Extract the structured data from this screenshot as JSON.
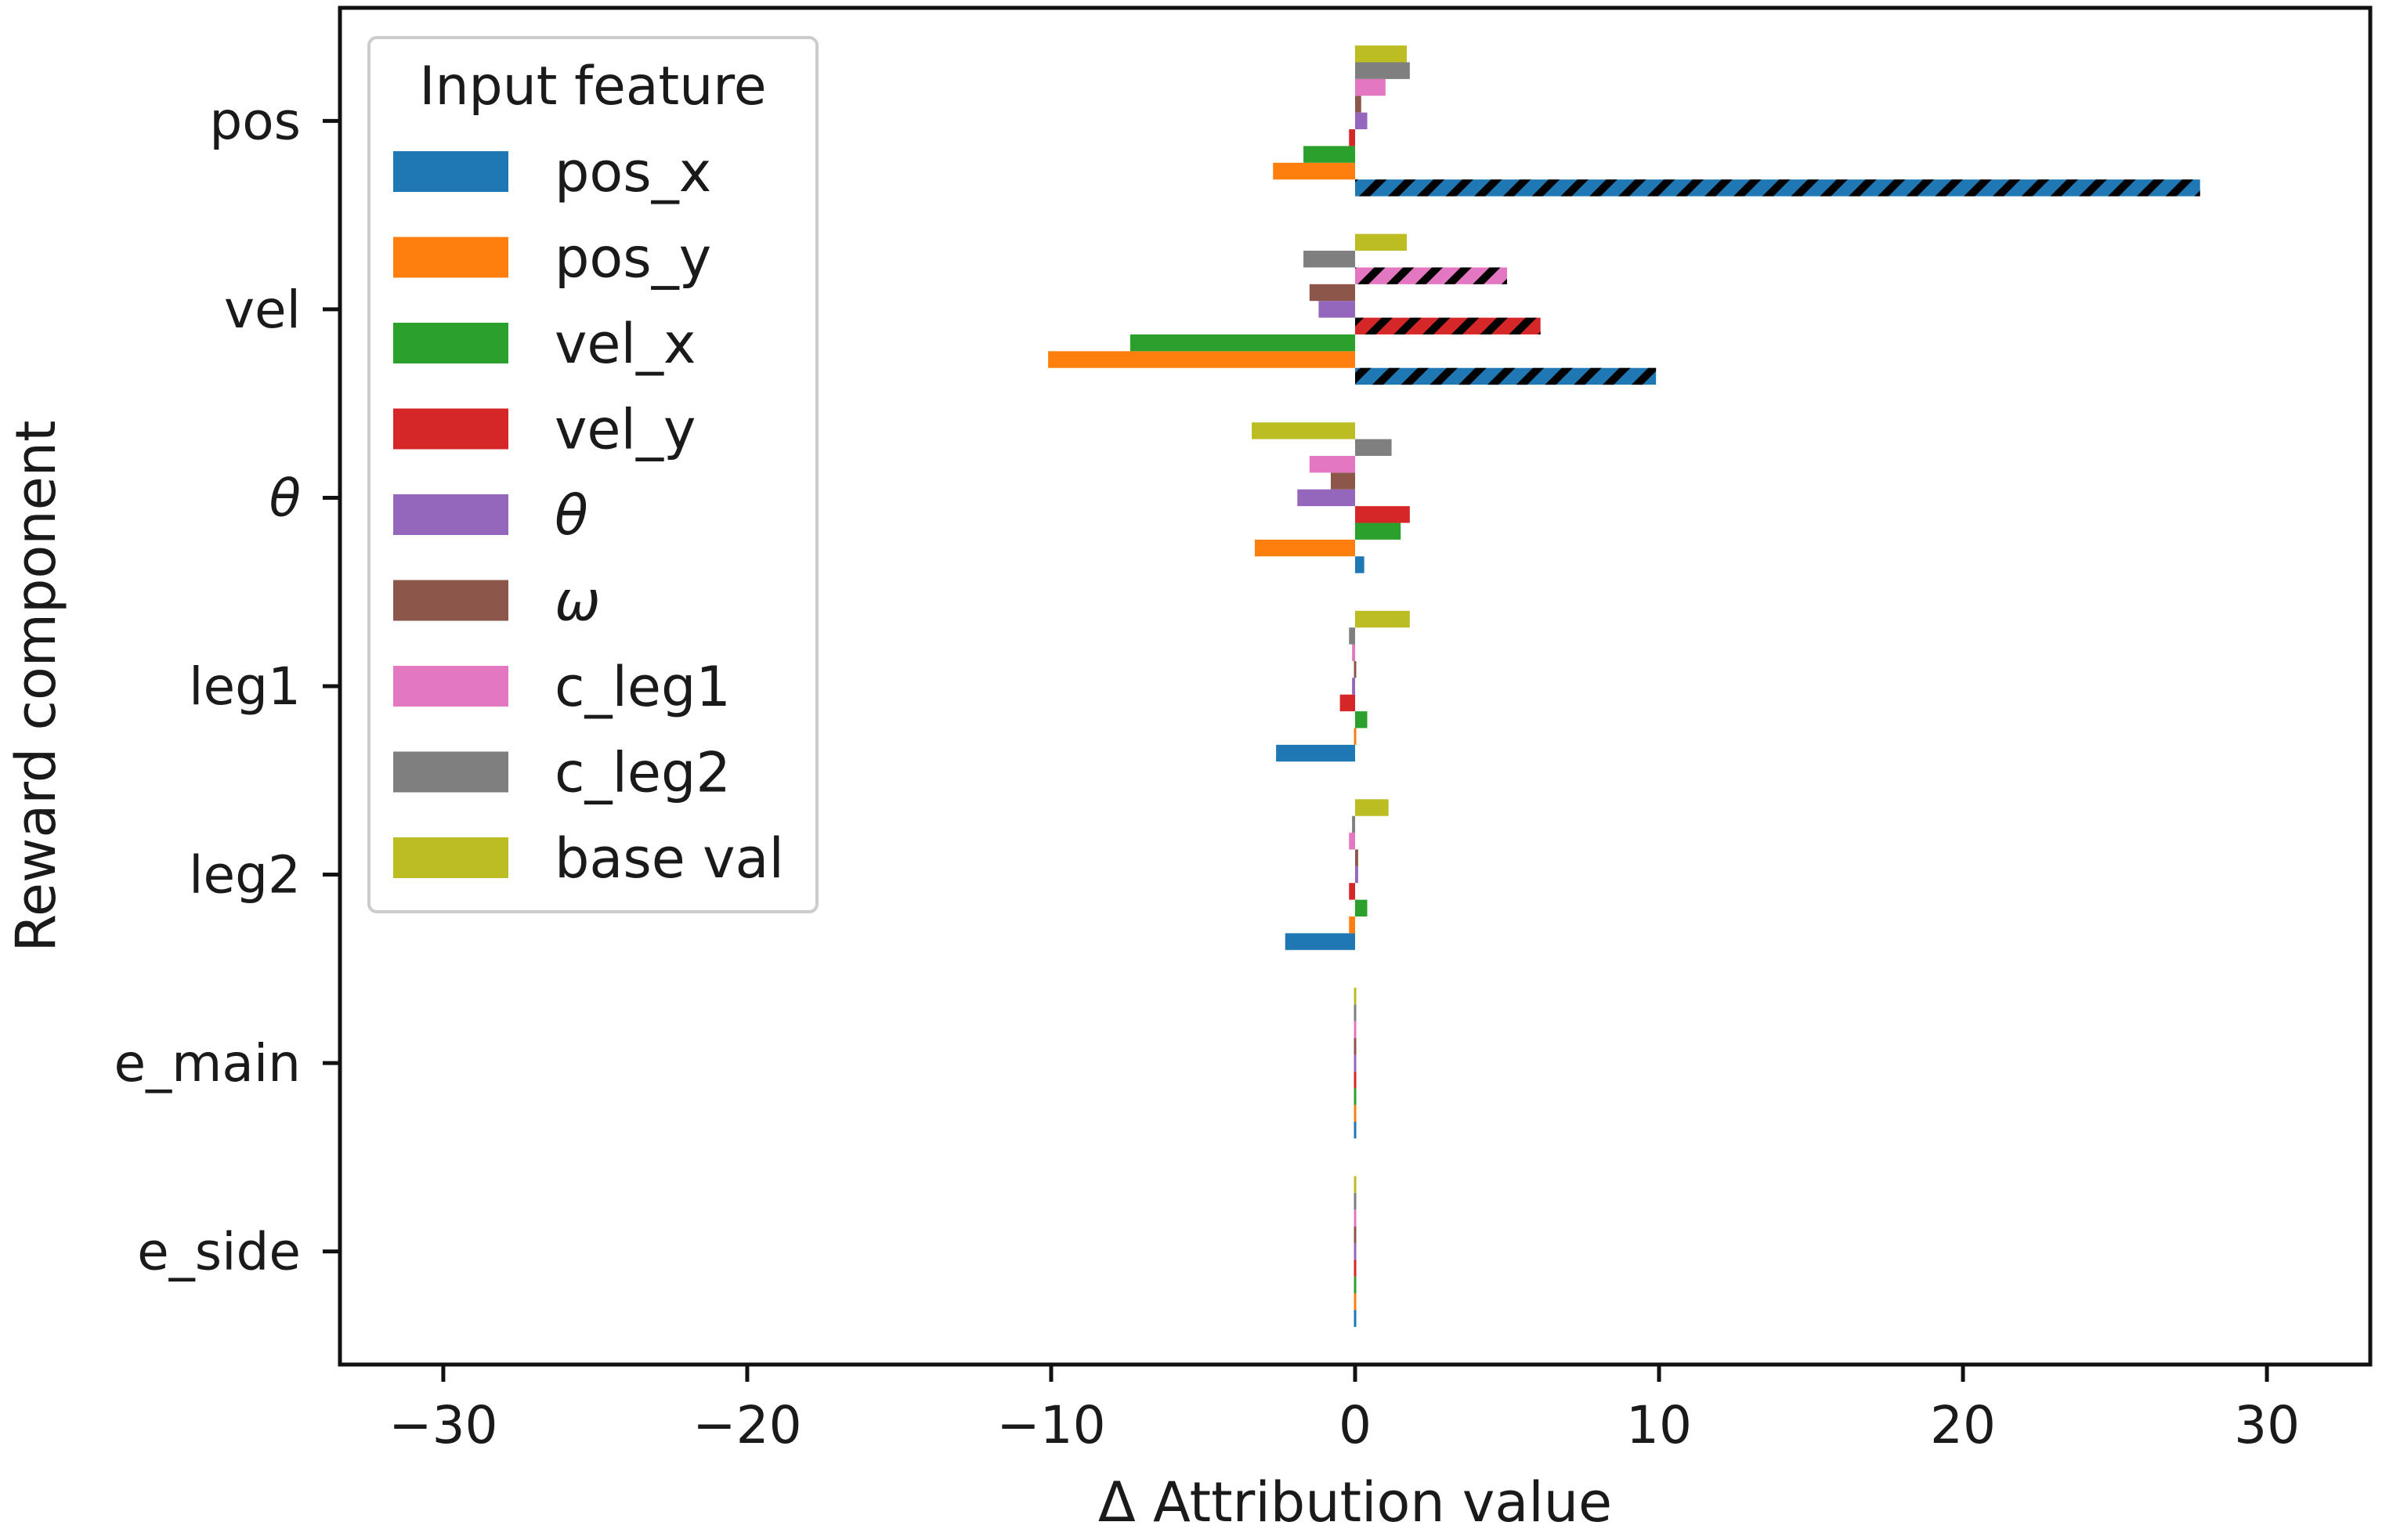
{
  "chart_data": {
    "type": "bar",
    "orientation": "horizontal",
    "xlabel": "Δ Attribution value",
    "ylabel": "Reward component",
    "xlim": [
      -33.4,
      33.4
    ],
    "xticks": [
      -30,
      -20,
      -10,
      0,
      10,
      20,
      30
    ],
    "xtick_labels": [
      "−30",
      "−20",
      "−10",
      "0",
      "10",
      "20",
      "30"
    ],
    "categories": [
      "pos",
      "vel",
      "θ",
      "leg1",
      "leg2",
      "e_main",
      "e_side"
    ],
    "legend": {
      "title": "Input feature",
      "placement": "upper-left"
    },
    "series": [
      {
        "name": "pos_x",
        "color": "#1f77b4",
        "values": [
          27.8,
          9.9,
          0.3,
          -2.6,
          -2.3,
          0.0,
          0.0
        ],
        "hatched": [
          true,
          true,
          false,
          false,
          false,
          false,
          false
        ]
      },
      {
        "name": "pos_y",
        "color": "#ff7f0e",
        "values": [
          -2.7,
          -10.1,
          -3.3,
          0.0,
          -0.2,
          0.0,
          0.0
        ]
      },
      {
        "name": "vel_x",
        "color": "#2ca02c",
        "values": [
          -1.7,
          -7.4,
          1.5,
          0.4,
          0.4,
          0.0,
          0.0
        ]
      },
      {
        "name": "vel_y",
        "color": "#d62728",
        "values": [
          -0.2,
          6.1,
          1.8,
          -0.5,
          -0.2,
          0.0,
          0.0
        ],
        "hatched": [
          false,
          true,
          false,
          false,
          false,
          false,
          false
        ]
      },
      {
        "name": "θ",
        "color": "#9467bd",
        "values": [
          0.4,
          -1.2,
          -1.9,
          -0.1,
          0.1,
          0.0,
          0.0
        ]
      },
      {
        "name": "ω",
        "color": "#8c564b",
        "values": [
          0.2,
          -1.5,
          -0.8,
          0.0,
          0.1,
          0.0,
          0.0
        ]
      },
      {
        "name": "c_leg1",
        "color": "#e377c2",
        "values": [
          1.0,
          5.0,
          -1.5,
          -0.1,
          -0.2,
          0.0,
          0.0
        ],
        "hatched": [
          false,
          true,
          false,
          false,
          false,
          false,
          false
        ]
      },
      {
        "name": "c_leg2",
        "color": "#7f7f7f",
        "values": [
          1.8,
          -1.7,
          1.2,
          -0.2,
          -0.1,
          0.0,
          0.0
        ]
      },
      {
        "name": "base val",
        "color": "#bcbd22",
        "values": [
          1.7,
          1.7,
          -3.4,
          1.8,
          1.1,
          0.05,
          0.05
        ]
      }
    ]
  }
}
